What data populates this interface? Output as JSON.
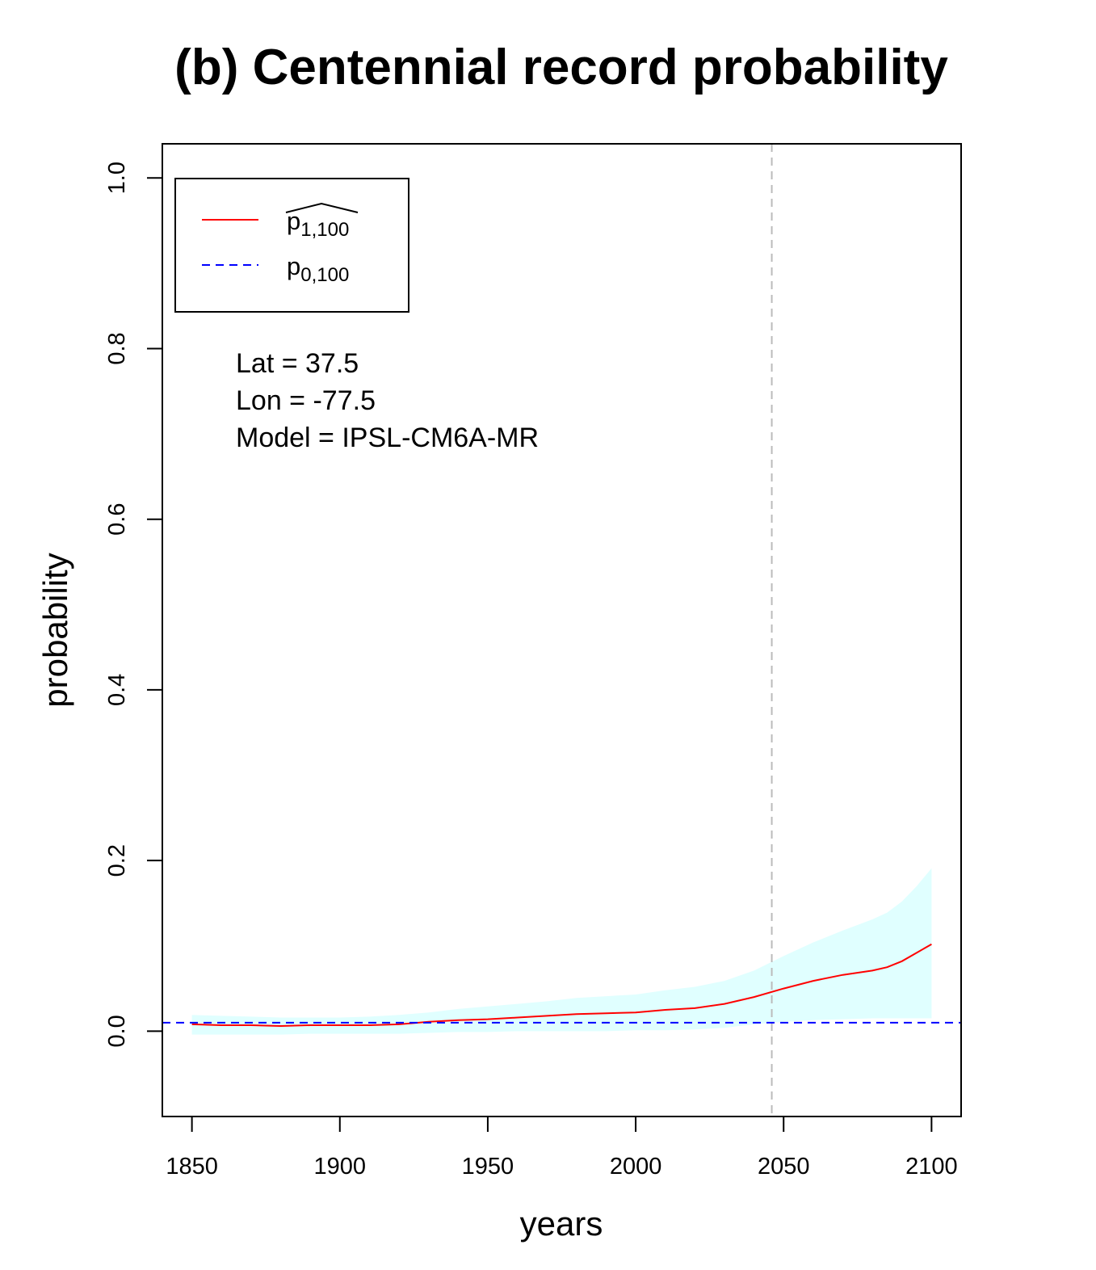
{
  "chart_data": {
    "type": "line",
    "title": "(b) Centennial record probability",
    "xlabel": "years",
    "ylabel": "probability",
    "xlim": [
      1840,
      2110
    ],
    "ylim": [
      -0.1,
      1.04
    ],
    "x_ticks": [
      1850,
      1900,
      1950,
      2000,
      2050,
      2100
    ],
    "y_ticks": [
      0.0,
      0.2,
      0.4,
      0.6,
      0.8,
      1.0
    ],
    "y_tick_labels": [
      "0.0",
      "0.2",
      "0.4",
      "0.6",
      "0.8",
      "1.0"
    ],
    "grid": false,
    "legend_position": "top-left",
    "legend": [
      {
        "base": "p",
        "sub": "1,100",
        "hat": true,
        "style": "solid",
        "color": "#ff0000"
      },
      {
        "base": "p",
        "sub": "0,100",
        "hat": false,
        "style": "dashed",
        "color": "#0000ff"
      }
    ],
    "annotations": [
      "Lat = 37.5",
      "Lon = -77.5",
      "Model = IPSL-CM6A-MR"
    ],
    "vertical_line": {
      "x": 2046,
      "color": "#bbbbbb",
      "style": "dashed"
    },
    "horizontal_line": {
      "y": 0.01,
      "color": "#0000ff",
      "style": "dashed"
    },
    "band_color": "#e0ffff",
    "series": [
      {
        "color": "#ff0000",
        "x": [
          1850,
          1860,
          1870,
          1880,
          1890,
          1900,
          1910,
          1920,
          1930,
          1940,
          1950,
          1960,
          1970,
          1980,
          1990,
          2000,
          2010,
          2020,
          2030,
          2040,
          2050,
          2060,
          2070,
          2080,
          2085,
          2090,
          2095,
          2100
        ],
        "y": [
          0.008,
          0.007,
          0.007,
          0.006,
          0.007,
          0.007,
          0.007,
          0.008,
          0.011,
          0.013,
          0.014,
          0.016,
          0.018,
          0.02,
          0.021,
          0.022,
          0.025,
          0.027,
          0.032,
          0.04,
          0.05,
          0.059,
          0.066,
          0.071,
          0.075,
          0.082,
          0.092,
          0.102
        ],
        "lower": [
          -0.004,
          -0.004,
          -0.004,
          -0.004,
          -0.003,
          -0.003,
          -0.003,
          -0.003,
          -0.002,
          -0.001,
          -0.001,
          0.0,
          0.0,
          0.0,
          0.0,
          0.001,
          0.001,
          0.002,
          0.004,
          0.008,
          0.011,
          0.013,
          0.014,
          0.015,
          0.015,
          0.015,
          0.015,
          0.015
        ],
        "upper": [
          0.019,
          0.018,
          0.017,
          0.016,
          0.016,
          0.016,
          0.017,
          0.019,
          0.022,
          0.026,
          0.029,
          0.032,
          0.035,
          0.039,
          0.041,
          0.043,
          0.048,
          0.052,
          0.059,
          0.071,
          0.088,
          0.104,
          0.118,
          0.131,
          0.139,
          0.152,
          0.17,
          0.191
        ]
      }
    ]
  }
}
